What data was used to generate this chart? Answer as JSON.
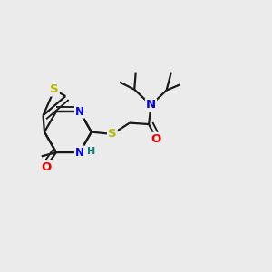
{
  "bg_color": "#ebebeb",
  "bond_color": "#1a1a1a",
  "S_color": "#b8b800",
  "N_color": "#0000ee",
  "O_color": "#ee0000",
  "H_color": "#008080",
  "line_width": 1.6,
  "font_size": 8.5,
  "figsize": [
    3.0,
    3.0
  ],
  "dpi": 100,
  "xlim": [
    0,
    10
  ],
  "ylim": [
    0,
    10
  ]
}
